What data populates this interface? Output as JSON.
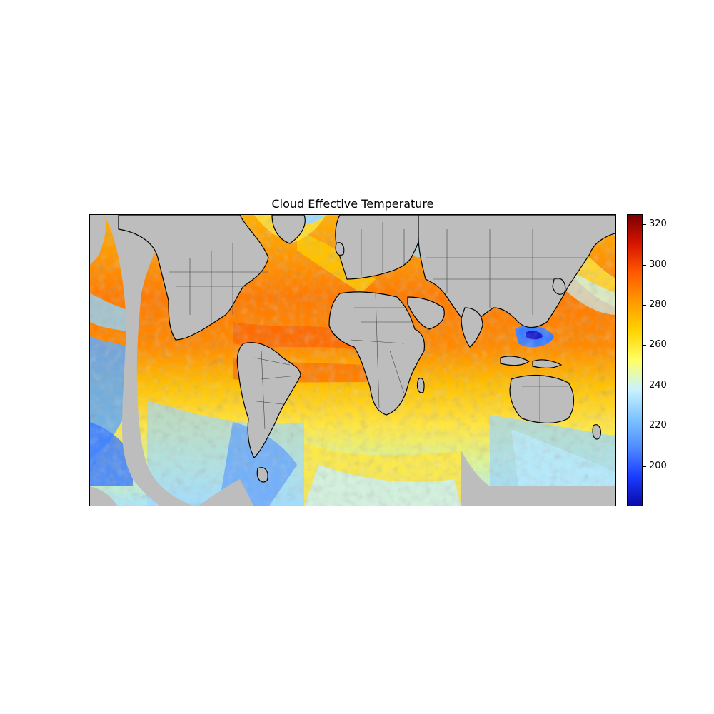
{
  "figure": {
    "title": "Cloud Effective Temperature"
  },
  "map": {
    "variable": "Cloud Effective Temperature",
    "projection": "equirectangular",
    "no_data_color": "#bdbdbd",
    "coastline_color": "#000000",
    "border_color": "#444444"
  },
  "colorbar": {
    "colormap": "jet",
    "range": [
      180,
      325
    ],
    "ticks": [
      {
        "value": 200,
        "label": "200"
      },
      {
        "value": 220,
        "label": "220"
      },
      {
        "value": 240,
        "label": "240"
      },
      {
        "value": 260,
        "label": "260"
      },
      {
        "value": 280,
        "label": "280"
      },
      {
        "value": 300,
        "label": "300"
      },
      {
        "value": 320,
        "label": "320"
      }
    ],
    "colors": [
      "#0a0aa8",
      "#1a3cff",
      "#4f8cff",
      "#7fc4ff",
      "#c9f3ff",
      "#ffff66",
      "#ffd400",
      "#ff9a00",
      "#ff5a00",
      "#d81400",
      "#7a0000"
    ]
  }
}
